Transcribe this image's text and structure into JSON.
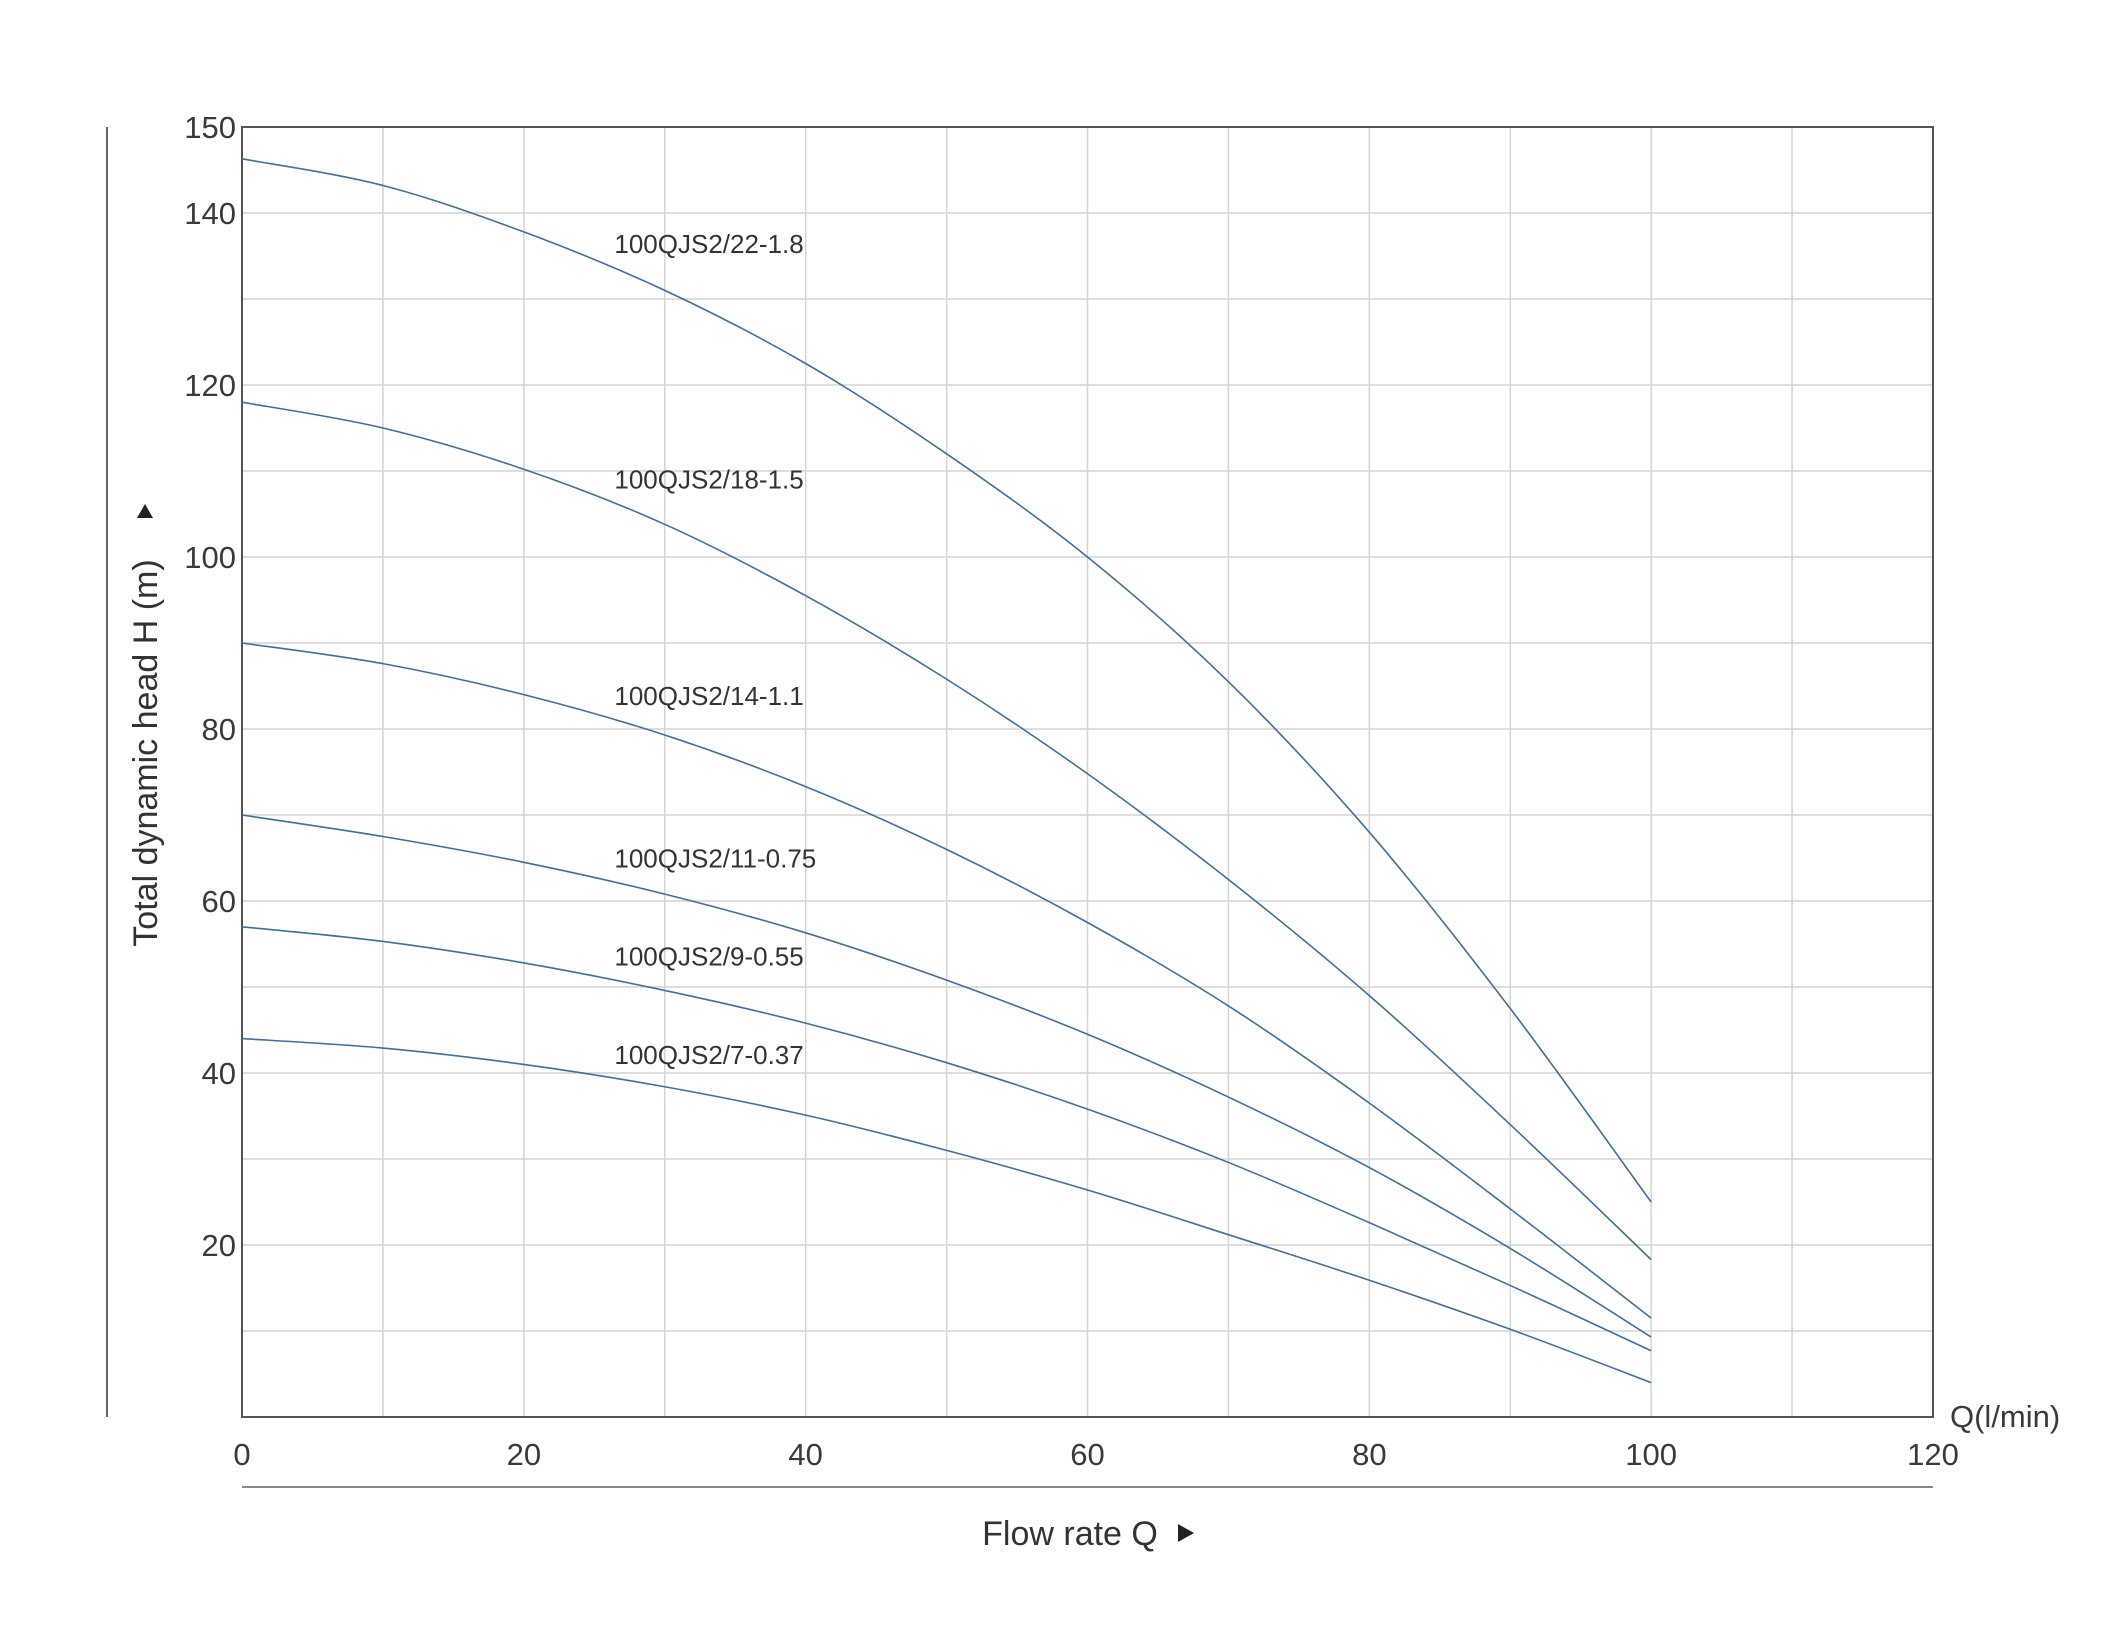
{
  "chart_data": {
    "type": "line",
    "xlabel": "Flow rate Q",
    "x_unit_label": "Q(l/min)",
    "ylabel": "Total dynamic head H (m)",
    "xlim": [
      0,
      120
    ],
    "ylim": [
      0,
      150
    ],
    "x_ticks": [
      0,
      20,
      40,
      60,
      80,
      100,
      120
    ],
    "y_ticks": [
      20,
      40,
      60,
      80,
      100,
      120,
      140,
      150
    ],
    "x_gridlines": [
      10,
      20,
      30,
      40,
      50,
      60,
      70,
      80,
      90,
      100,
      110
    ],
    "y_gridlines": [
      10,
      20,
      30,
      40,
      50,
      60,
      70,
      80,
      90,
      100,
      110,
      120,
      130,
      140
    ],
    "grid": true,
    "colors": {
      "curve": "#3f6f9f",
      "grid": "#d4d4d4",
      "axis": "#555555",
      "text": "#333333"
    },
    "x": [
      0,
      10,
      20,
      30,
      40,
      50,
      60,
      70,
      80,
      90,
      100
    ],
    "series": [
      {
        "name": "100QJS2/22-1.8",
        "values": [
          146.3,
          143.2,
          137.8,
          131.0,
          122.5,
          112.0,
          100.0,
          85.5,
          68.0,
          47.5,
          25.0
        ]
      },
      {
        "name": "100QJS2/18-1.5",
        "values": [
          118.0,
          115.0,
          110.2,
          103.8,
          95.5,
          85.8,
          74.8,
          62.5,
          49.0,
          34.0,
          18.3
        ]
      },
      {
        "name": "100QJS2/14-1.1",
        "values": [
          90.0,
          87.6,
          84.0,
          79.3,
          73.3,
          66.0,
          57.5,
          47.8,
          36.5,
          24.2,
          11.5
        ]
      },
      {
        "name": "100QJS2/11-0.75",
        "values": [
          70.0,
          67.5,
          64.5,
          60.8,
          56.3,
          50.8,
          44.5,
          37.2,
          29.0,
          19.6,
          9.3
        ]
      },
      {
        "name": "100QJS2/9-0.55",
        "values": [
          57.0,
          55.3,
          52.8,
          49.6,
          45.8,
          41.2,
          35.8,
          29.6,
          22.6,
          15.3,
          7.7
        ]
      },
      {
        "name": "100QJS2/7-0.37",
        "values": [
          44.0,
          42.9,
          41.0,
          38.4,
          35.1,
          31.0,
          26.4,
          21.2,
          15.9,
          10.2,
          4.0
        ]
      }
    ]
  }
}
